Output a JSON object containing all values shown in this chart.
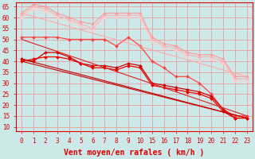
{
  "bg_color": "#cce8e8",
  "grid_color": "#e8a0a0",
  "xlabel": "Vent moyen/en rafales ( km/h )",
  "xlabel_color": "#dd0000",
  "xlabel_fontsize": 7,
  "tick_color": "#dd0000",
  "tick_fontsize": 5.5,
  "yticks": [
    10,
    15,
    20,
    25,
    30,
    35,
    40,
    45,
    50,
    55,
    60,
    65
  ],
  "ylim": [
    8,
    67
  ],
  "series": [
    {
      "color": "#ff9999",
      "lw": 0.8,
      "marker": "D",
      "ms": 1.8,
      "xraw": [
        0,
        1,
        2,
        3,
        4,
        5,
        6,
        7,
        8,
        9,
        10,
        15,
        16,
        17,
        18,
        19,
        20,
        21,
        22,
        23
      ],
      "y": [
        62,
        66,
        65,
        62,
        60,
        58,
        57,
        62,
        62,
        62,
        62,
        51,
        48,
        47,
        44,
        43,
        43,
        41,
        33,
        33
      ]
    },
    {
      "color": "#ffb0b0",
      "lw": 0.8,
      "marker": "D",
      "ms": 1.8,
      "xraw": [
        0,
        1,
        2,
        3,
        4,
        5,
        6,
        7,
        8,
        9,
        10,
        15,
        16,
        17,
        18,
        19,
        20,
        21,
        22,
        23
      ],
      "y": [
        61,
        65,
        64,
        61,
        59,
        57,
        55,
        61,
        61,
        61,
        61,
        50,
        47,
        46,
        43,
        42,
        42,
        40,
        32,
        32
      ]
    },
    {
      "color": "#ffcccc",
      "lw": 0.8,
      "marker": "D",
      "ms": 1.8,
      "xraw": [
        0,
        1,
        2,
        3,
        4,
        5,
        6,
        7,
        8,
        9,
        10,
        15,
        16,
        17,
        18,
        19,
        20,
        21,
        22,
        23
      ],
      "y": [
        60,
        64,
        63,
        60,
        58,
        56,
        54,
        60,
        60,
        60,
        60,
        49,
        46,
        45,
        42,
        40,
        41,
        39,
        31,
        31
      ]
    },
    {
      "color": "#ff4444",
      "lw": 0.9,
      "marker": "D",
      "ms": 2.0,
      "xraw": [
        0,
        1,
        2,
        3,
        4,
        5,
        6,
        7,
        8,
        9,
        10,
        15,
        16,
        17,
        18,
        19,
        20,
        21,
        22,
        23
      ],
      "y": [
        51,
        51,
        51,
        51,
        50,
        50,
        50,
        50,
        47,
        51,
        47,
        40,
        37,
        33,
        33,
        30,
        25,
        18,
        15,
        15
      ]
    },
    {
      "color": "#cc0000",
      "lw": 0.9,
      "marker": "D",
      "ms": 2.0,
      "xraw": [
        0,
        1,
        2,
        3,
        4,
        5,
        6,
        7,
        8,
        9,
        10,
        15,
        16,
        17,
        18,
        19,
        20,
        21,
        22,
        23
      ],
      "y": [
        41,
        40,
        44,
        44,
        42,
        39,
        38,
        38,
        37,
        39,
        38,
        30,
        29,
        28,
        27,
        26,
        24,
        18,
        14,
        14
      ]
    },
    {
      "color": "#ee0000",
      "lw": 0.9,
      "marker": "D",
      "ms": 2.0,
      "xraw": [
        0,
        1,
        2,
        3,
        4,
        5,
        6,
        7,
        8,
        9,
        10,
        15,
        16,
        17,
        18,
        19,
        20,
        21,
        22,
        23
      ],
      "y": [
        40,
        41,
        42,
        42,
        41,
        39,
        37,
        37,
        36,
        38,
        37,
        29,
        28,
        27,
        26,
        25,
        23,
        17,
        14,
        14
      ]
    },
    {
      "color": "#ffaaaa",
      "lw": 0.8,
      "marker": null,
      "ms": 0,
      "xraw": [
        0,
        23
      ],
      "y": [
        62,
        33
      ]
    },
    {
      "color": "#dd2222",
      "lw": 0.8,
      "marker": null,
      "ms": 0,
      "xraw": [
        0,
        23
      ],
      "y": [
        50,
        15
      ]
    },
    {
      "color": "#bb0000",
      "lw": 0.8,
      "marker": null,
      "ms": 0,
      "xraw": [
        0,
        23
      ],
      "y": [
        41,
        14
      ]
    },
    {
      "color": "#cc0000",
      "lw": 0.8,
      "marker": null,
      "ms": 0,
      "xraw": [
        0,
        23
      ],
      "y": [
        40,
        14
      ]
    }
  ]
}
